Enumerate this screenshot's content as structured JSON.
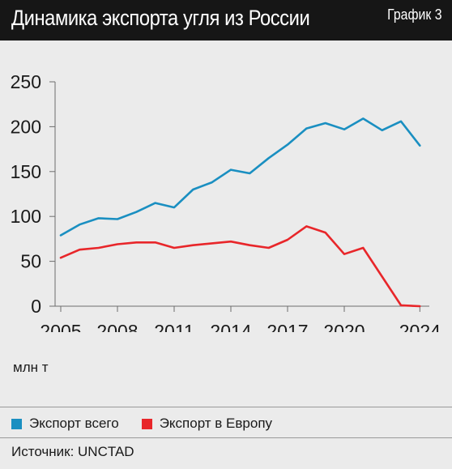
{
  "header": {
    "title": "Динамика экспорта угля из России",
    "tag": "График 3"
  },
  "footer": {
    "unit_label": "млн т",
    "source": "Источник: UNCTAD"
  },
  "colors": {
    "header_bg": "#161616",
    "background": "#ebebeb",
    "total_series": "#1a8fc1",
    "europe_series": "#e8262a"
  },
  "chart_data": {
    "type": "line",
    "x": [
      2005,
      2006,
      2007,
      2008,
      2009,
      2010,
      2011,
      2012,
      2013,
      2014,
      2015,
      2016,
      2017,
      2018,
      2019,
      2020,
      2021,
      2022,
      2023,
      2024
    ],
    "series": [
      {
        "name": "Экспорт всего",
        "color": "#1a8fc1",
        "x": [
          2005,
          2006,
          2007,
          2008,
          2009,
          2010,
          2011,
          2012,
          2013,
          2014,
          2015,
          2016,
          2017,
          2018,
          2019,
          2020,
          2021,
          2022,
          2023,
          2024
        ],
        "values": [
          79,
          91,
          98,
          97,
          105,
          115,
          110,
          130,
          138,
          152,
          148,
          165,
          180,
          198,
          204,
          197,
          209,
          196,
          206,
          179
        ]
      },
      {
        "name": "Экспорт в Европу",
        "color": "#e8262a",
        "x": [
          2005,
          2006,
          2007,
          2008,
          2009,
          2010,
          2011,
          2012,
          2013,
          2014,
          2015,
          2016,
          2017,
          2018,
          2019,
          2020,
          2021,
          2023,
          2024
        ],
        "values": [
          54,
          63,
          65,
          69,
          71,
          71,
          65,
          68,
          70,
          72,
          68,
          65,
          74,
          89,
          82,
          58,
          65,
          1,
          0
        ]
      }
    ],
    "xticks": [
      2005,
      2008,
      2011,
      2014,
      2017,
      2020,
      2024
    ],
    "yticks": [
      0,
      50,
      100,
      150,
      200,
      250
    ],
    "xlim": [
      2004.7,
      2024.5
    ],
    "ylim": [
      0,
      250
    ],
    "grid": false,
    "ylabel": "млн т",
    "xlabel": "",
    "legend": "bottom"
  }
}
